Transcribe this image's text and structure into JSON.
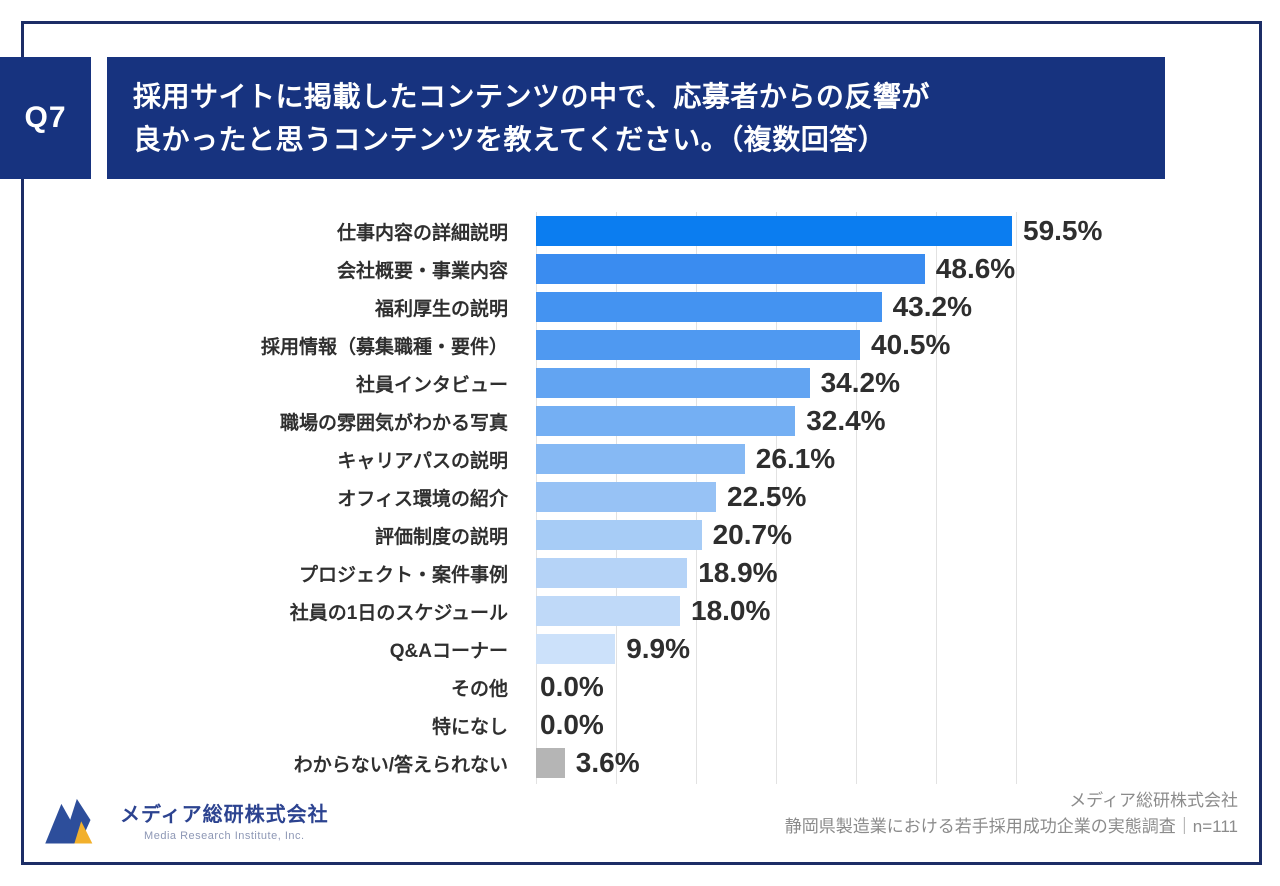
{
  "header": {
    "q_label": "Q7",
    "title_line1": "採用サイトに掲載したコンテンツの中で、応募者からの反響が",
    "title_line2": "良かったと思うコンテンツを教えてください。（複数回答）"
  },
  "chart_data": {
    "type": "bar",
    "orientation": "horizontal",
    "unit": "%",
    "categories": [
      "仕事内容の詳細説明",
      "会社概要・事業内容",
      "福利厚生の説明",
      "採用情報（募集職種・要件）",
      "社員インタビュー",
      "職場の雰囲気がわかる写真",
      "キャリアパスの説明",
      "オフィス環境の紹介",
      "評価制度の説明",
      "プロジェクト・案件事例",
      "社員の1日のスケジュール",
      "Q&Aコーナー",
      "その他",
      "特になし",
      "わからない/答えられない"
    ],
    "values": [
      59.5,
      48.6,
      43.2,
      40.5,
      34.2,
      32.4,
      26.1,
      22.5,
      20.7,
      18.9,
      18.0,
      9.9,
      0.0,
      0.0,
      3.6
    ],
    "value_labels": [
      "59.5%",
      "48.6%",
      "43.2%",
      "40.5%",
      "34.2%",
      "32.4%",
      "26.1%",
      "22.5%",
      "20.7%",
      "18.9%",
      "18.0%",
      "9.9%",
      "0.0%",
      "0.0%",
      "3.6%"
    ],
    "bar_colors": [
      "#0b7df0",
      "#3a8cf0",
      "#4493f1",
      "#4f99f1",
      "#62a4f2",
      "#74aff3",
      "#86b9f4",
      "#97c2f5",
      "#a7ccf6",
      "#b5d3f7",
      "#bfd9f8",
      "#cce1fa",
      null,
      null,
      "#b5b5b5"
    ],
    "title": "採用サイトに掲載したコンテンツの中で、応募者からの反響が良かったと思うコンテンツを教えてください。（複数回答）",
    "xlabel": "",
    "ylabel": "",
    "xlim": [
      0,
      60
    ],
    "gridline_interval": 10,
    "grid": true,
    "legend": "none"
  },
  "footer": {
    "logo_company_jp": "メディア総研株式会社",
    "logo_company_en": "Media Research Institute, Inc.",
    "source_line1": "メディア総研株式会社",
    "source_line2": "静岡県製造業における若手採用成功企業の実態調査｜n=111"
  },
  "colors": {
    "navy_header": "#17337f",
    "frame_border": "#1c2d66",
    "gridline": "#e2e2e2",
    "value_text": "#2e2e2e",
    "gray_bar": "#b5b5b5",
    "logo_blue": "#2d4e9b",
    "logo_yellow": "#f2b02c"
  }
}
